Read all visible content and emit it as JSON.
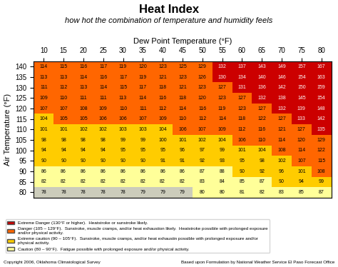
{
  "chart_data": {
    "type": "heatmap",
    "title": "Heat Index",
    "subtitle": "how hot the combination of temperature and humidity feels",
    "x_label": "Dew Point Temperature (°F)",
    "y_label": "Air Temperature (°F)",
    "x_categories": [
      "10",
      "15",
      "20",
      "25",
      "30",
      "35",
      "40",
      "45",
      "50",
      "55",
      "60",
      "65",
      "70",
      "75",
      "80"
    ],
    "y_categories": [
      "140",
      "135",
      "130",
      "125",
      "120",
      "115",
      "110",
      "105",
      "100",
      "95",
      "90",
      "85",
      "80"
    ],
    "cells": [
      [
        114,
        115,
        116,
        117,
        119,
        120,
        123,
        125,
        129,
        132,
        137,
        143,
        149,
        157,
        167
      ],
      [
        113,
        113,
        114,
        116,
        117,
        119,
        121,
        123,
        126,
        130,
        134,
        140,
        146,
        154,
        163
      ],
      [
        111,
        112,
        113,
        114,
        115,
        117,
        118,
        121,
        123,
        127,
        131,
        136,
        142,
        150,
        159
      ],
      [
        109,
        110,
        111,
        111,
        113,
        114,
        116,
        118,
        120,
        123,
        127,
        132,
        138,
        145,
        154
      ],
      [
        107,
        107,
        108,
        109,
        110,
        111,
        112,
        114,
        116,
        119,
        123,
        127,
        132,
        139,
        148
      ],
      [
        104,
        105,
        105,
        106,
        106,
        107,
        109,
        110,
        112,
        114,
        118,
        122,
        127,
        133,
        142
      ],
      [
        101,
        101,
        102,
        102,
        103,
        103,
        104,
        106,
        107,
        109,
        112,
        116,
        121,
        127,
        135
      ],
      [
        98,
        98,
        98,
        98,
        99,
        99,
        100,
        101,
        102,
        104,
        106,
        110,
        114,
        120,
        129
      ],
      [
        94,
        94,
        94,
        94,
        95,
        95,
        95,
        96,
        97,
        99,
        101,
        104,
        108,
        114,
        122
      ],
      [
        90,
        90,
        90,
        90,
        90,
        90,
        91,
        91,
        92,
        93,
        95,
        98,
        102,
        107,
        115
      ],
      [
        86,
        86,
        86,
        86,
        86,
        86,
        86,
        86,
        87,
        88,
        90,
        92,
        96,
        101,
        108
      ],
      [
        82,
        82,
        82,
        82,
        82,
        82,
        82,
        82,
        83,
        84,
        85,
        87,
        90,
        94,
        99
      ],
      [
        78,
        78,
        78,
        78,
        78,
        79,
        79,
        79,
        80,
        80,
        81,
        82,
        83,
        85,
        87
      ]
    ],
    "colors": [
      [
        "#ff6600",
        "#ff6600",
        "#ff6600",
        "#ff6600",
        "#ff6600",
        "#ff6600",
        "#ff6600",
        "#ff6600",
        "#ff6600",
        "#cc0000",
        "#cc0000",
        "#cc0000",
        "#cc0000",
        "#cc0000",
        "#cc0000"
      ],
      [
        "#ff6600",
        "#ff6600",
        "#ff6600",
        "#ff6600",
        "#ff6600",
        "#ff6600",
        "#ff6600",
        "#ff6600",
        "#ff6600",
        "#cc0000",
        "#cc0000",
        "#cc0000",
        "#cc0000",
        "#cc0000",
        "#cc0000"
      ],
      [
        "#ff6600",
        "#ff6600",
        "#ff6600",
        "#ff6600",
        "#ff6600",
        "#ff6600",
        "#ff6600",
        "#ff6600",
        "#ff6600",
        "#ff6600",
        "#cc0000",
        "#cc0000",
        "#cc0000",
        "#cc0000",
        "#cc0000"
      ],
      [
        "#ff6600",
        "#ff6600",
        "#ff6600",
        "#ff6600",
        "#ff6600",
        "#ff6600",
        "#ff6600",
        "#ff6600",
        "#ff6600",
        "#ff6600",
        "#ff6600",
        "#cc0000",
        "#cc0000",
        "#cc0000",
        "#cc0000"
      ],
      [
        "#ff6600",
        "#ff6600",
        "#ff6600",
        "#ff6600",
        "#ff6600",
        "#ff6600",
        "#ff6600",
        "#ff6600",
        "#ff6600",
        "#ff6600",
        "#ff6600",
        "#ff6600",
        "#cc0000",
        "#cc0000",
        "#cc0000"
      ],
      [
        "#ffcc00",
        "#ff6600",
        "#ff6600",
        "#ff6600",
        "#ff6600",
        "#ff6600",
        "#ff6600",
        "#ff6600",
        "#ff6600",
        "#ff6600",
        "#ff6600",
        "#ff6600",
        "#ff6600",
        "#cc0000",
        "#cc0000"
      ],
      [
        "#ffcc00",
        "#ffcc00",
        "#ffcc00",
        "#ffcc00",
        "#ffcc00",
        "#ffcc00",
        "#ffcc00",
        "#ff6600",
        "#ff6600",
        "#ff6600",
        "#ff6600",
        "#ff6600",
        "#ff6600",
        "#ff6600",
        "#cc0000"
      ],
      [
        "#ffcc00",
        "#ffcc00",
        "#ffcc00",
        "#ffcc00",
        "#ffcc00",
        "#ffcc00",
        "#ffcc00",
        "#ffcc00",
        "#ffcc00",
        "#ffcc00",
        "#ff6600",
        "#ff6600",
        "#ff6600",
        "#ff6600",
        "#ff6600"
      ],
      [
        "#ffcc00",
        "#ffcc00",
        "#ffcc00",
        "#ffcc00",
        "#ffcc00",
        "#ffcc00",
        "#ffcc00",
        "#ffcc00",
        "#ffcc00",
        "#ffcc00",
        "#ffcc00",
        "#ffcc00",
        "#ff6600",
        "#ff6600",
        "#ff6600"
      ],
      [
        "#ffcc00",
        "#ffcc00",
        "#ffcc00",
        "#ffcc00",
        "#ffcc00",
        "#ffcc00",
        "#ffcc00",
        "#ffcc00",
        "#ffcc00",
        "#ffcc00",
        "#ffcc00",
        "#ffcc00",
        "#ffcc00",
        "#ff6600",
        "#ff6600"
      ],
      [
        "#ffff99",
        "#ffff99",
        "#ffff99",
        "#ffff99",
        "#ffff99",
        "#ffff99",
        "#ffff99",
        "#ffff99",
        "#ffff99",
        "#ffff99",
        "#ffcc00",
        "#ffcc00",
        "#ffcc00",
        "#ffcc00",
        "#ff6600"
      ],
      [
        "#ffff99",
        "#ffff99",
        "#ffff99",
        "#ffff99",
        "#ffff99",
        "#ffff99",
        "#ffff99",
        "#ffff99",
        "#ffff99",
        "#ffff99",
        "#ffff99",
        "#ffff99",
        "#ffcc00",
        "#ffcc00",
        "#ffcc00"
      ],
      [
        "#ccccbb",
        "#ccccbb",
        "#ccccbb",
        "#ccccbb",
        "#ccccbb",
        "#ccccbb",
        "#ccccbb",
        "#ccccbb",
        "#ffff99",
        "#ffff99",
        "#ffff99",
        "#ffff99",
        "#ffff99",
        "#ffff99",
        "#ffff99"
      ]
    ],
    "data_labels": true,
    "legend_entries": [
      {
        "name": "Extreme Danger (130°F or higher).  Heatstroke or sunstroke likely.",
        "color": "#cc0000"
      },
      {
        "name": "Danger (105 – 129°F).  Sunstroke, muscle cramps, and/or heat exhaustion likely.  Heatstroke possible with prolonged exposure\nand/or physical activity.",
        "color": "#ff6600"
      },
      {
        "name": "Extreme caution (90 – 105°F).  Sunstroke, muscle cramps, and/or heat exhaustin possible with prolonged exposure and/or\nphysical activity.",
        "color": "#ffcc00"
      },
      {
        "name": "Caution (80 – 90°F).  Fatigue possible with prolonged exposure and/or physical activity.",
        "color": "#ffff99"
      }
    ],
    "annotations": [
      "Copyright 2006, Oklahoma Climatological Survey",
      "Based upon Formulation by National Weather Service El Paso Forecast Office"
    ]
  }
}
